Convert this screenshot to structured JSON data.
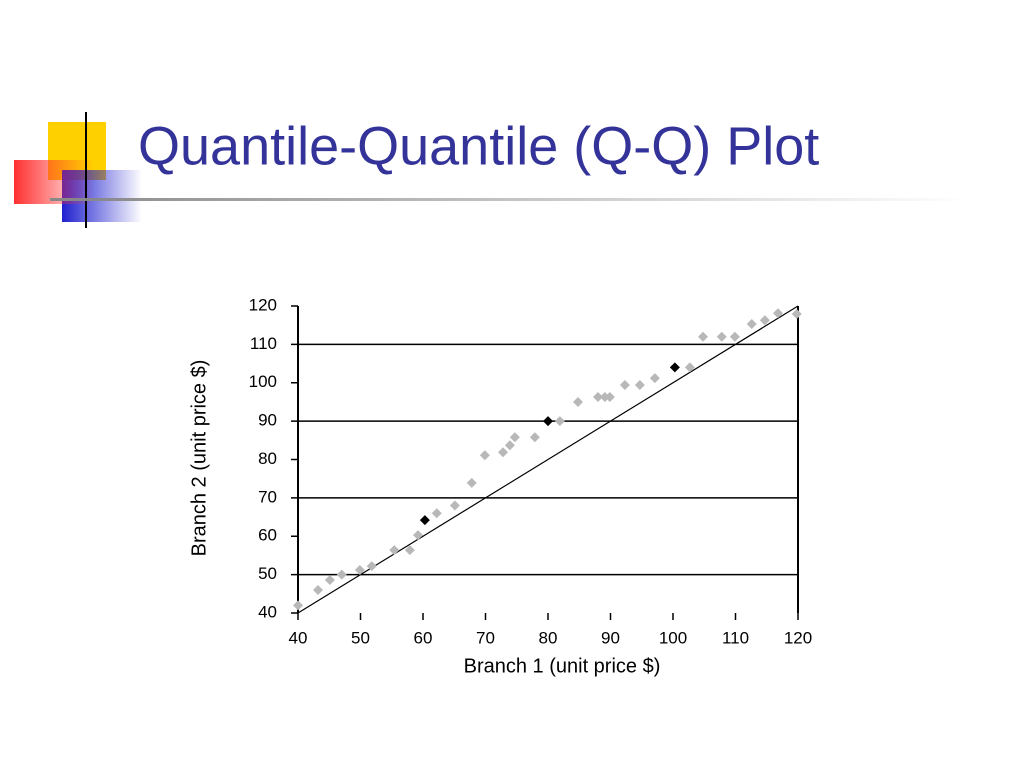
{
  "slide_title": "Quantile-Quantile (Q-Q) Plot",
  "chart_data": {
    "type": "scatter",
    "x_label": "Branch 1 (unit price $)",
    "y_label": "Branch 2 (unit price $)",
    "xlim": [
      40,
      120
    ],
    "ylim": [
      40,
      120
    ],
    "xticks": [
      40,
      50,
      60,
      70,
      80,
      90,
      100,
      110,
      120
    ],
    "yticks": [
      40,
      50,
      60,
      70,
      80,
      90,
      100,
      110,
      120
    ],
    "ygrid": [
      50,
      70,
      90,
      110
    ],
    "reference_line": {
      "x": [
        40,
        120
      ],
      "y": [
        40,
        120
      ],
      "color": "#000000"
    },
    "series": [
      {
        "color": "#b8b8b8",
        "x": [
          40,
          43.2,
          45.1,
          47,
          49.9,
          51.8,
          55.4,
          57.9,
          59.2,
          62.2,
          65.1,
          67.8,
          69.9,
          72.8,
          73.9,
          74.7,
          77.9,
          81.9,
          84.8,
          88,
          89.1,
          89.9,
          92.3,
          94.7,
          97.1,
          102.7,
          104.8,
          107.8,
          109.9,
          112.6,
          114.7,
          116.8,
          119.8
        ],
        "values": [
          42,
          46,
          48.6,
          50,
          51.2,
          52.2,
          56.4,
          56.4,
          60.3,
          66,
          68,
          73.9,
          81.1,
          81.9,
          83.7,
          85.8,
          85.8,
          90,
          95,
          96.3,
          96.3,
          96.3,
          99.4,
          99.4,
          101.2,
          104,
          112,
          112,
          112,
          115.3,
          116.3,
          118.1,
          117.9
        ]
      },
      {
        "color": "#000000",
        "x": [
          60.3,
          80,
          100.3
        ],
        "values": [
          64.2,
          90,
          104
        ]
      }
    ]
  }
}
